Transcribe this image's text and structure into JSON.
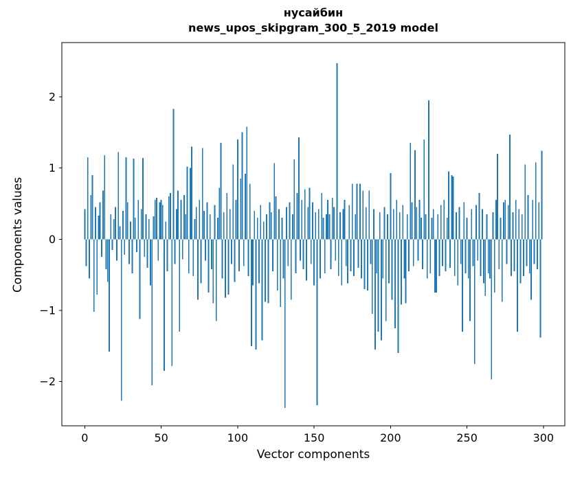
{
  "title_line1": "нусайбин",
  "title_line2": "news_upos_skipgram_300_5_2019 model",
  "chart_data": {
    "type": "bar",
    "title": "нусайбин\nnews_upos_skipgram_300_5_2019 model",
    "xlabel": "Vector components",
    "ylabel": "Components values",
    "xlim": [
      -15,
      314
    ],
    "ylim": [
      -2.62,
      2.76
    ],
    "x_ticks": [
      0,
      50,
      100,
      150,
      200,
      250,
      300
    ],
    "y_ticks": [
      -2,
      -1,
      0,
      1,
      2
    ],
    "y_tick_labels": [
      "−2",
      "−1",
      "0",
      "1",
      "2"
    ],
    "grid": false,
    "legend": null,
    "bar_color": "#1f77b4",
    "n_components": 300,
    "values": [
      0.42,
      -0.38,
      1.15,
      -0.55,
      0.62,
      0.9,
      -1.02,
      0.45,
      -0.78,
      0.33,
      0.52,
      -0.25,
      0.68,
      1.18,
      -0.42,
      -0.6,
      -1.58,
      0.35,
      -0.15,
      0.28,
      0.45,
      -0.3,
      1.22,
      0.18,
      -2.27,
      0.4,
      -0.22,
      1.15,
      0.52,
      -0.35,
      0.25,
      -0.48,
      1.13,
      0.3,
      -0.18,
      0.55,
      -1.12,
      0.42,
      1.14,
      -0.25,
      0.35,
      -0.4,
      0.28,
      -0.65,
      -2.05,
      0.32,
      0.55,
      0.58,
      -0.3,
      0.52,
      0.55,
      0.48,
      -1.85,
      0.25,
      -0.45,
      0.6,
      0.65,
      -1.78,
      1.83,
      -0.35,
      0.42,
      0.68,
      -1.3,
      0.55,
      -0.28,
      0.62,
      0.35,
      1.02,
      -0.48,
      1.0,
      1.3,
      -0.52,
      0.28,
      0.45,
      -0.85,
      0.55,
      -0.62,
      1.28,
      0.4,
      -0.3,
      0.52,
      -0.75,
      0.35,
      -0.42,
      -0.9,
      0.48,
      -1.15,
      0.3,
      0.72,
      1.35,
      -0.55,
      0.38,
      -0.82,
      0.65,
      -0.78,
      0.42,
      -0.35,
      1.05,
      -0.6,
      0.55,
      1.4,
      -0.45,
      0.85,
      1.5,
      -0.38,
      0.92,
      1.58,
      -0.52,
      0.78,
      -1.5,
      -0.65,
      0.4,
      -1.55,
      0.3,
      -0.62,
      0.48,
      -1.42,
      0.25,
      -0.88,
      0.35,
      -0.9,
      0.52,
      0.38,
      -0.45,
      1.07,
      0.6,
      -0.72,
      0.42,
      -0.95,
      0.3,
      -0.55,
      -2.37,
      0.45,
      -0.38,
      0.52,
      -0.85,
      0.35,
      1.12,
      -0.48,
      0.65,
      1.43,
      -0.3,
      0.55,
      -0.42,
      0.7,
      -0.58,
      0.45,
      0.72,
      -0.35,
      0.52,
      -0.65,
      0.38,
      -2.33,
      0.42,
      -0.55,
      0.65,
      0.3,
      -0.48,
      0.35,
      0.55,
      0.35,
      -0.42,
      0.58,
      0.45,
      -0.3,
      2.47,
      -0.52,
      0.38,
      -0.65,
      0.42,
      0.55,
      -0.38,
      -0.62,
      0.48,
      -0.45,
      0.78,
      -0.52,
      0.35,
      0.78,
      -0.4,
      0.78,
      -0.55,
      0.68,
      -0.7,
      0.45,
      -0.72,
      0.68,
      -0.35,
      -1.05,
      0.42,
      -1.55,
      -0.48,
      -1.3,
      0.38,
      -1.42,
      -0.55,
      0.45,
      -1.15,
      0.35,
      -0.62,
      0.93,
      -0.85,
      0.42,
      -1.25,
      0.55,
      -1.6,
      0.38,
      -0.92,
      0.48,
      -0.55,
      -0.9,
      0.35,
      -0.45,
      1.35,
      0.52,
      -0.38,
      1.25,
      0.45,
      -0.3,
      0.55,
      0.3,
      -0.42,
      1.4,
      0.35,
      -0.55,
      1.95,
      -0.48,
      0.3,
      0.42,
      -0.75,
      -0.75,
      0.35,
      -0.52,
      0.48,
      -0.38,
      0.55,
      -0.45,
      0.3,
      0.95,
      -0.4,
      0.9,
      0.88,
      -0.52,
      0.38,
      -0.65,
      0.45,
      -0.35,
      -1.3,
      0.52,
      -0.48,
      0.3,
      -0.55,
      -1.15,
      0.42,
      -0.38,
      -1.75,
      0.48,
      -0.3,
      0.65,
      -0.52,
      0.42,
      -0.62,
      -0.8,
      0.35,
      -0.48,
      -0.55,
      -1.97,
      0.38,
      -0.75,
      0.55,
      1.2,
      -0.42,
      0.3,
      -0.88,
      0.52,
      0.55,
      -0.35,
      0.48,
      1.47,
      -0.52,
      0.38,
      -0.45,
      0.55,
      -1.3,
      0.42,
      -0.62,
      0.35,
      -0.52,
      1.05,
      -0.38,
      0.62,
      -0.48,
      -0.85,
      0.55,
      -0.35,
      1.08,
      -0.42,
      0.52,
      -1.38,
      1.24
    ]
  }
}
